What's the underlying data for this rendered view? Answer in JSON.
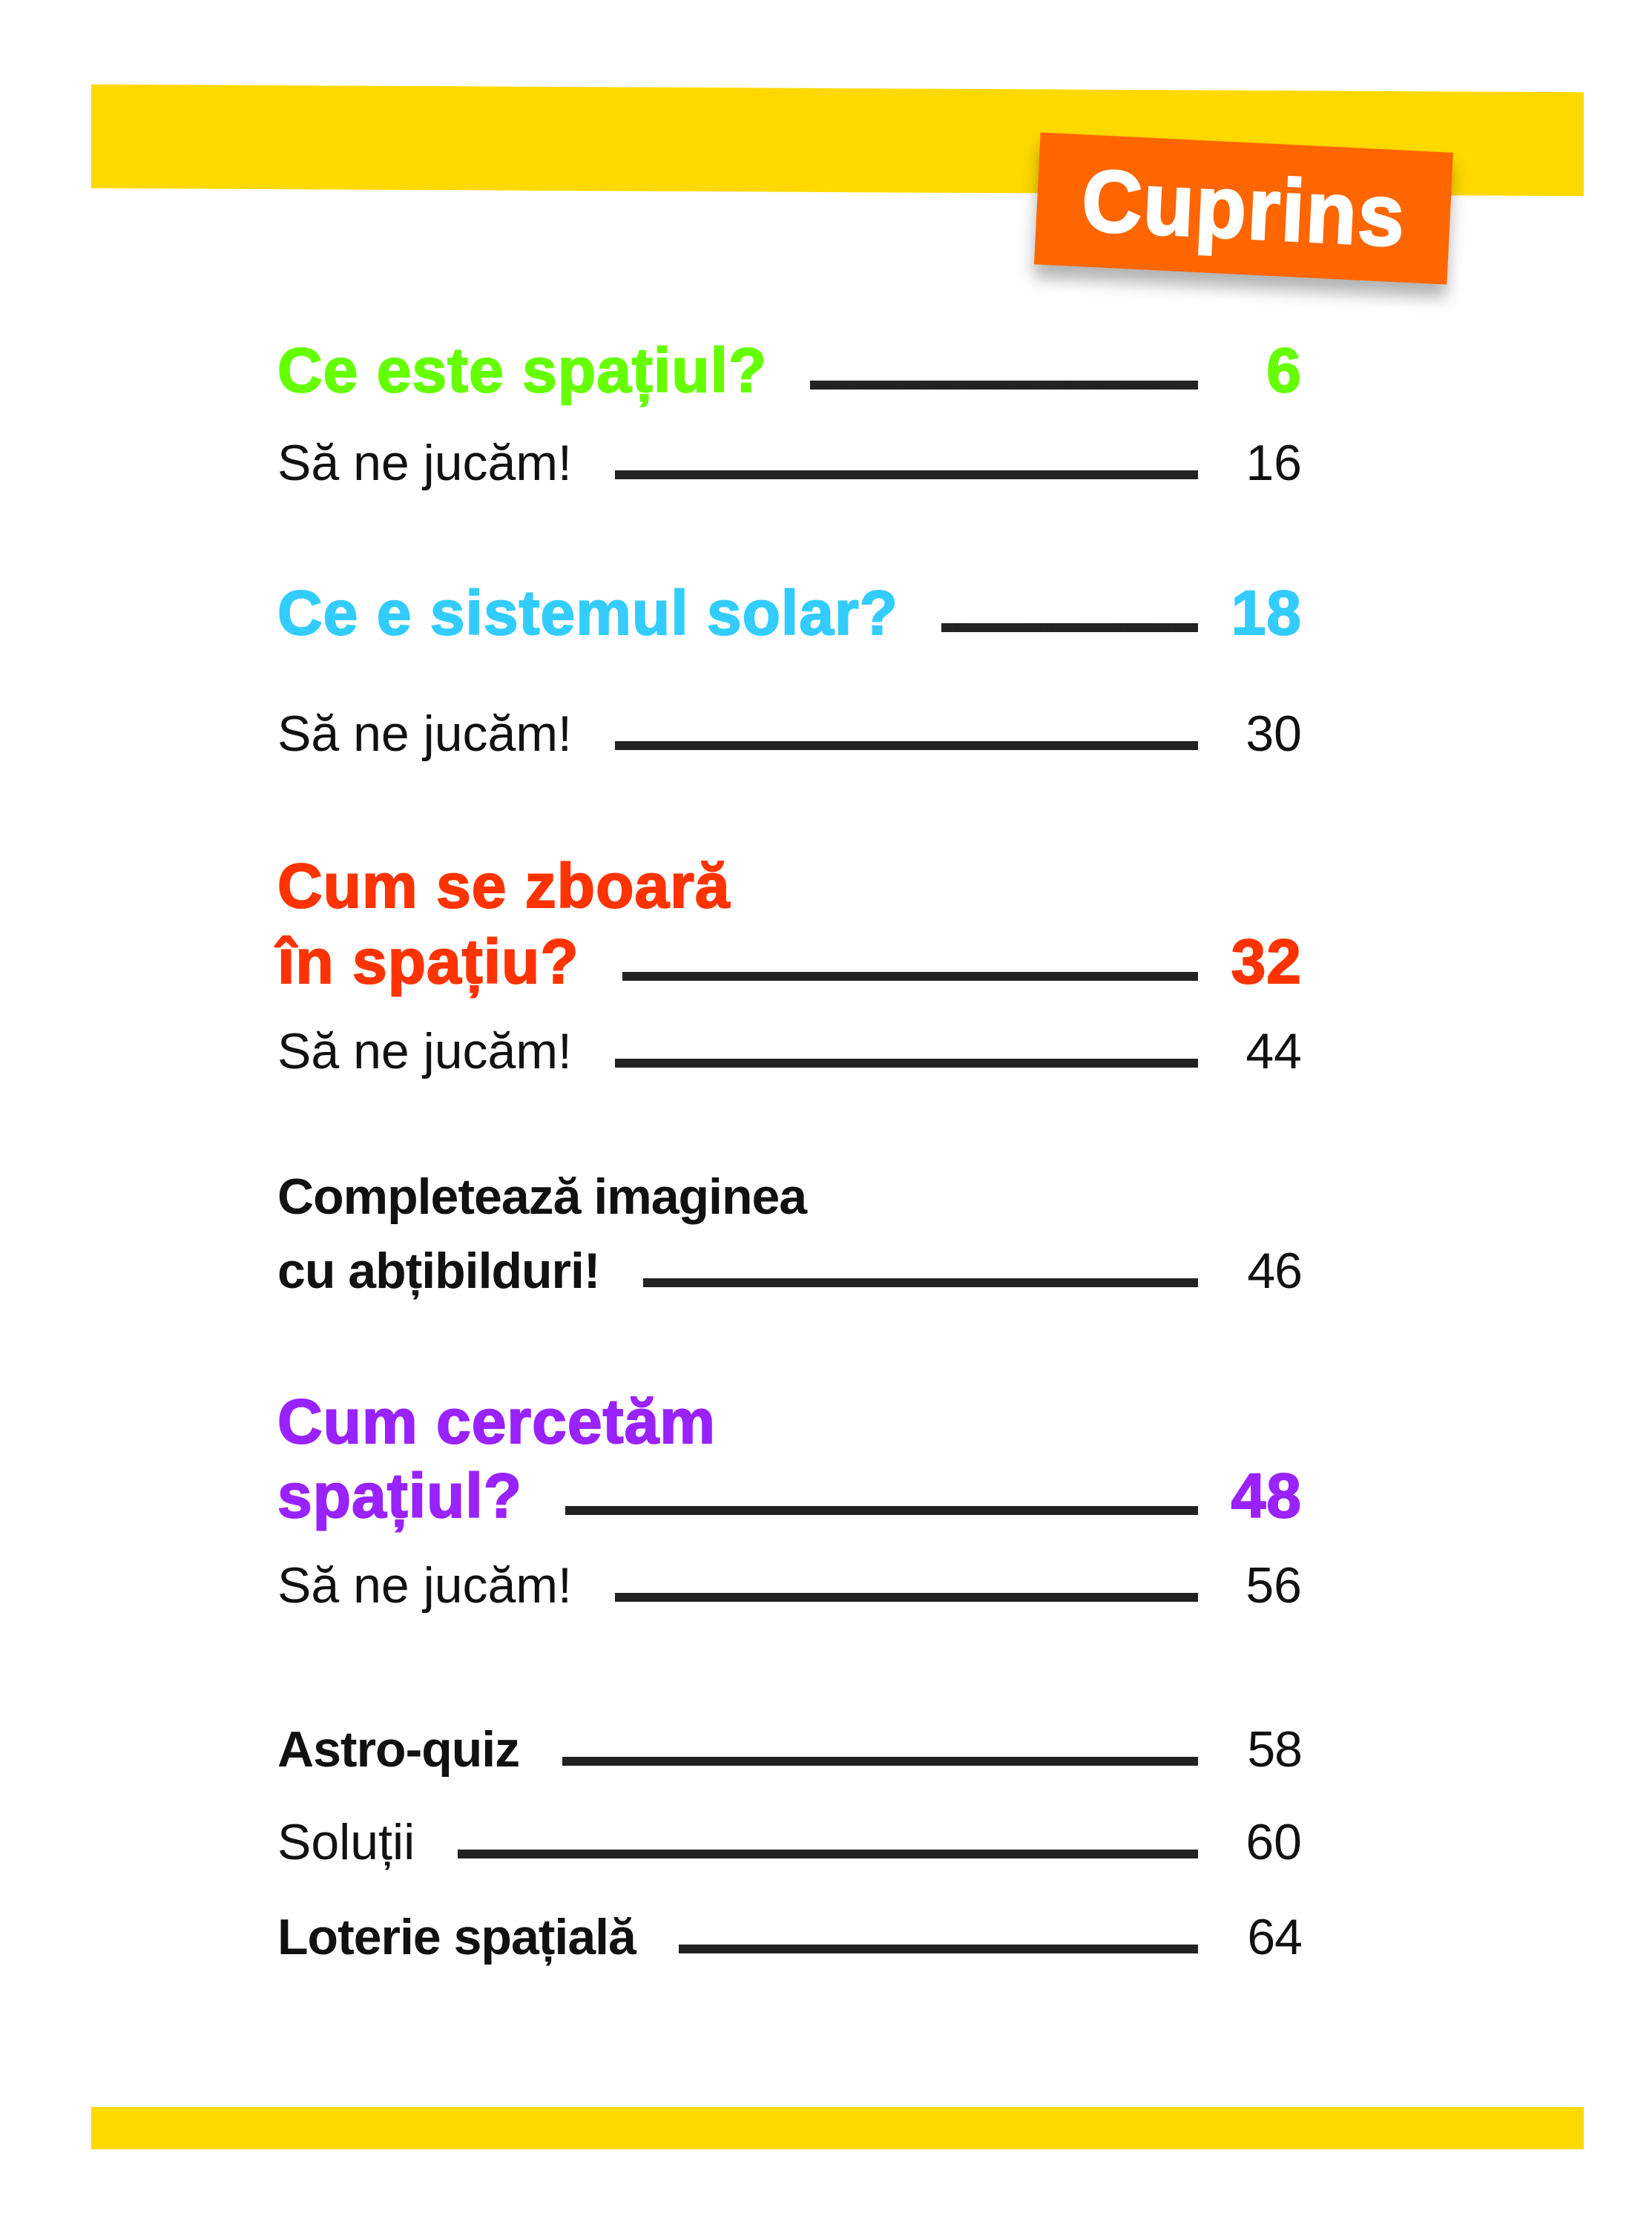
{
  "title": "Cuprins",
  "colors": {
    "band": "#ffd900",
    "title_box": "#ff6600",
    "green": "#66ff00",
    "cyan": "#33ccff",
    "red": "#ff3300",
    "purple": "#9922ff"
  },
  "entries": [
    {
      "label": "Ce este spațiul?",
      "page": "6"
    },
    {
      "label": "Să ne jucăm!",
      "page": "16"
    },
    {
      "label": "Ce e sistemul solar?",
      "page": "18"
    },
    {
      "label": "Să ne jucăm!",
      "page": "30"
    },
    {
      "label_line1": "Cum se zboară",
      "label": "în spațiu?",
      "page": "32"
    },
    {
      "label": "Să ne jucăm!",
      "page": "44"
    },
    {
      "label_line1": "Completează imaginea",
      "label": "cu abțibilduri!",
      "page": "46"
    },
    {
      "label_line1": "Cum cercetăm",
      "label": "spațiul?",
      "page": "48"
    },
    {
      "label": "Să ne jucăm!",
      "page": "56"
    },
    {
      "label": "Astro-quiz",
      "page": "58"
    },
    {
      "label": "Soluții",
      "page": "60"
    },
    {
      "label": "Loterie spațială",
      "page": "64"
    }
  ]
}
